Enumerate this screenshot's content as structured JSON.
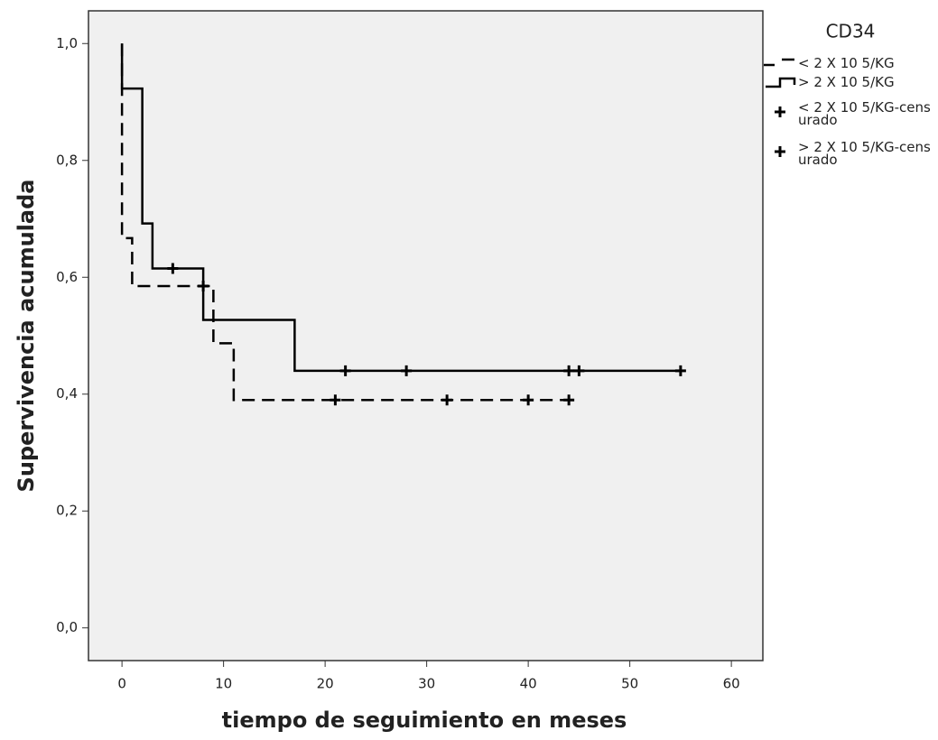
{
  "chart_data": {
    "type": "km",
    "x_label": "tiempo de seguimiento en meses",
    "y_label": "Supervivencia acumulada",
    "legend_title": "CD34",
    "xlim": [
      -3.3,
      63.1
    ],
    "ylim": [
      -0.056,
      1.056
    ],
    "xticks": [
      0,
      10,
      20,
      30,
      40,
      50,
      60
    ],
    "yticks": [
      {
        "value": 0,
        "label": "0,0"
      },
      {
        "value": 0.2,
        "label": "0,2"
      },
      {
        "value": 0.4,
        "label": "0,4"
      },
      {
        "value": 0.6,
        "label": "0,6"
      },
      {
        "value": 0.8,
        "label": "0,8"
      },
      {
        "value": 1.0,
        "label": "1,0"
      }
    ],
    "series": [
      {
        "name": "< 2 X 10 5/KG",
        "color": "#000000",
        "style": "dashed",
        "x": [
          0,
          0,
          1,
          9,
          11,
          44
        ],
        "values": [
          1.0,
          0.667,
          0.585,
          0.487,
          0.39,
          0.39
        ]
      },
      {
        "name": "> 2 X 10 5/KG",
        "color": "#000000",
        "style": "solid",
        "x": [
          0,
          0,
          2,
          3,
          8,
          17,
          55
        ],
        "values": [
          1.0,
          0.923,
          0.692,
          0.615,
          0.527,
          0.44,
          0.44
        ]
      },
      {
        "name": "< 2 X 10 5/KG-censurado",
        "color": "#000000",
        "style": "censor",
        "x": [
          8,
          21,
          32,
          40,
          44
        ],
        "values": [
          0.585,
          0.39,
          0.39,
          0.39,
          0.39
        ]
      },
      {
        "name": "> 2 X 10 5/KG-censurado",
        "color": "#000000",
        "style": "censor",
        "x": [
          5,
          22,
          28,
          44,
          45,
          55
        ],
        "values": [
          0.615,
          0.44,
          0.44,
          0.44,
          0.44,
          0.44
        ]
      }
    ]
  }
}
